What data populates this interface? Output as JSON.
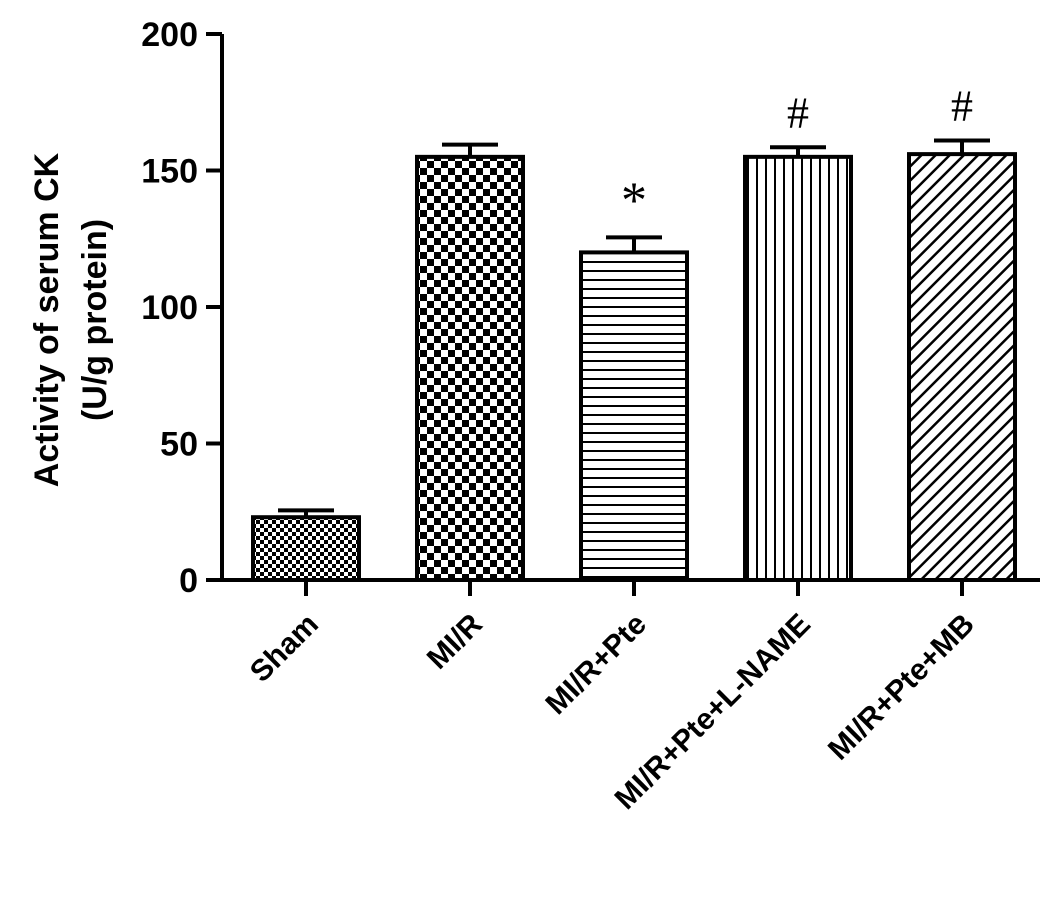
{
  "chart_data": {
    "type": "bar",
    "ylabel": [
      "Activity of serum CK",
      "(U/g protein)"
    ],
    "xlabel": "",
    "ylim": [
      0,
      200
    ],
    "yticks": [
      "0",
      "50",
      "100",
      "150",
      "200"
    ],
    "categories": [
      "Sham",
      "MI/R",
      "MI/R+Pte",
      "MI/R+Pte+L-NAME",
      "MI/R+Pte+MB"
    ],
    "values": [
      23,
      155,
      120,
      155,
      156
    ],
    "errors": [
      2.5,
      4.5,
      5.5,
      3.5,
      5
    ],
    "patterns": [
      "fine-checker",
      "checker",
      "horizontal-lines",
      "vertical-lines",
      "diagonal-lines"
    ],
    "annotations": [
      "",
      "",
      "*",
      "#",
      "#"
    ],
    "grid": false,
    "legend": "none"
  }
}
